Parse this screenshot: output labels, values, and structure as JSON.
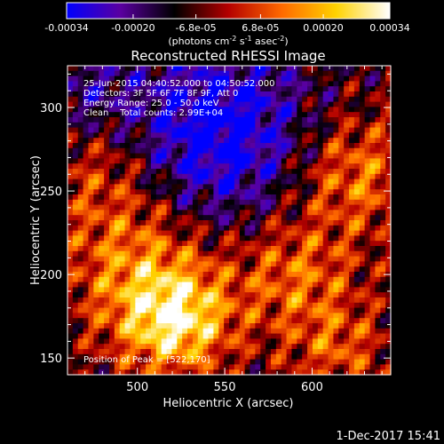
{
  "chart_data": {
    "type": "heatmap",
    "title": "Reconstructed RHESSI Image",
    "xlabel": "Heliocentric X (arcsec)",
    "ylabel": "Heliocentric Y (arcsec)",
    "xlim": [
      460,
      645
    ],
    "ylim": [
      140,
      325
    ],
    "x_ticks": [
      500,
      550,
      600
    ],
    "y_ticks": [
      150,
      200,
      250,
      300
    ],
    "colorbar": {
      "range": [
        -0.00034,
        0.00034
      ],
      "tick_labels": [
        "-0.00034",
        "-0.00020",
        "-6.8e-05",
        "6.8e-05",
        "0.00020",
        "0.00034"
      ],
      "tick_values": [
        -0.00034,
        -0.0002,
        -6.8e-05,
        6.8e-05,
        0.0002,
        0.00034
      ],
      "unit_label": {
        "prefix": "(photons cm",
        "sup1": "-2",
        "mid1": " s",
        "sup2": "-1",
        "mid2": " asec",
        "sup3": "-2",
        "suffix": ")"
      },
      "colors": [
        "#0000ff",
        "#5a00a0",
        "#000000",
        "#b40000",
        "#ff6a00",
        "#ffd200",
        "#ffffff"
      ]
    },
    "annotations": [
      "25-Jun-2015 04:40:52.000 to 04:50:52.000",
      "Detectors: 3F 5F 6F 7F 8F 9F, Att 0",
      "Energy Range: 25.0 - 50.0 keV",
      "Clean    Total counts: 2.99E+04"
    ],
    "peak_label": "Position of Peak = [522,170]",
    "peak": [
      522,
      170
    ]
  },
  "footer": {
    "date_stamp": "1-Dec-2017 15:41"
  }
}
